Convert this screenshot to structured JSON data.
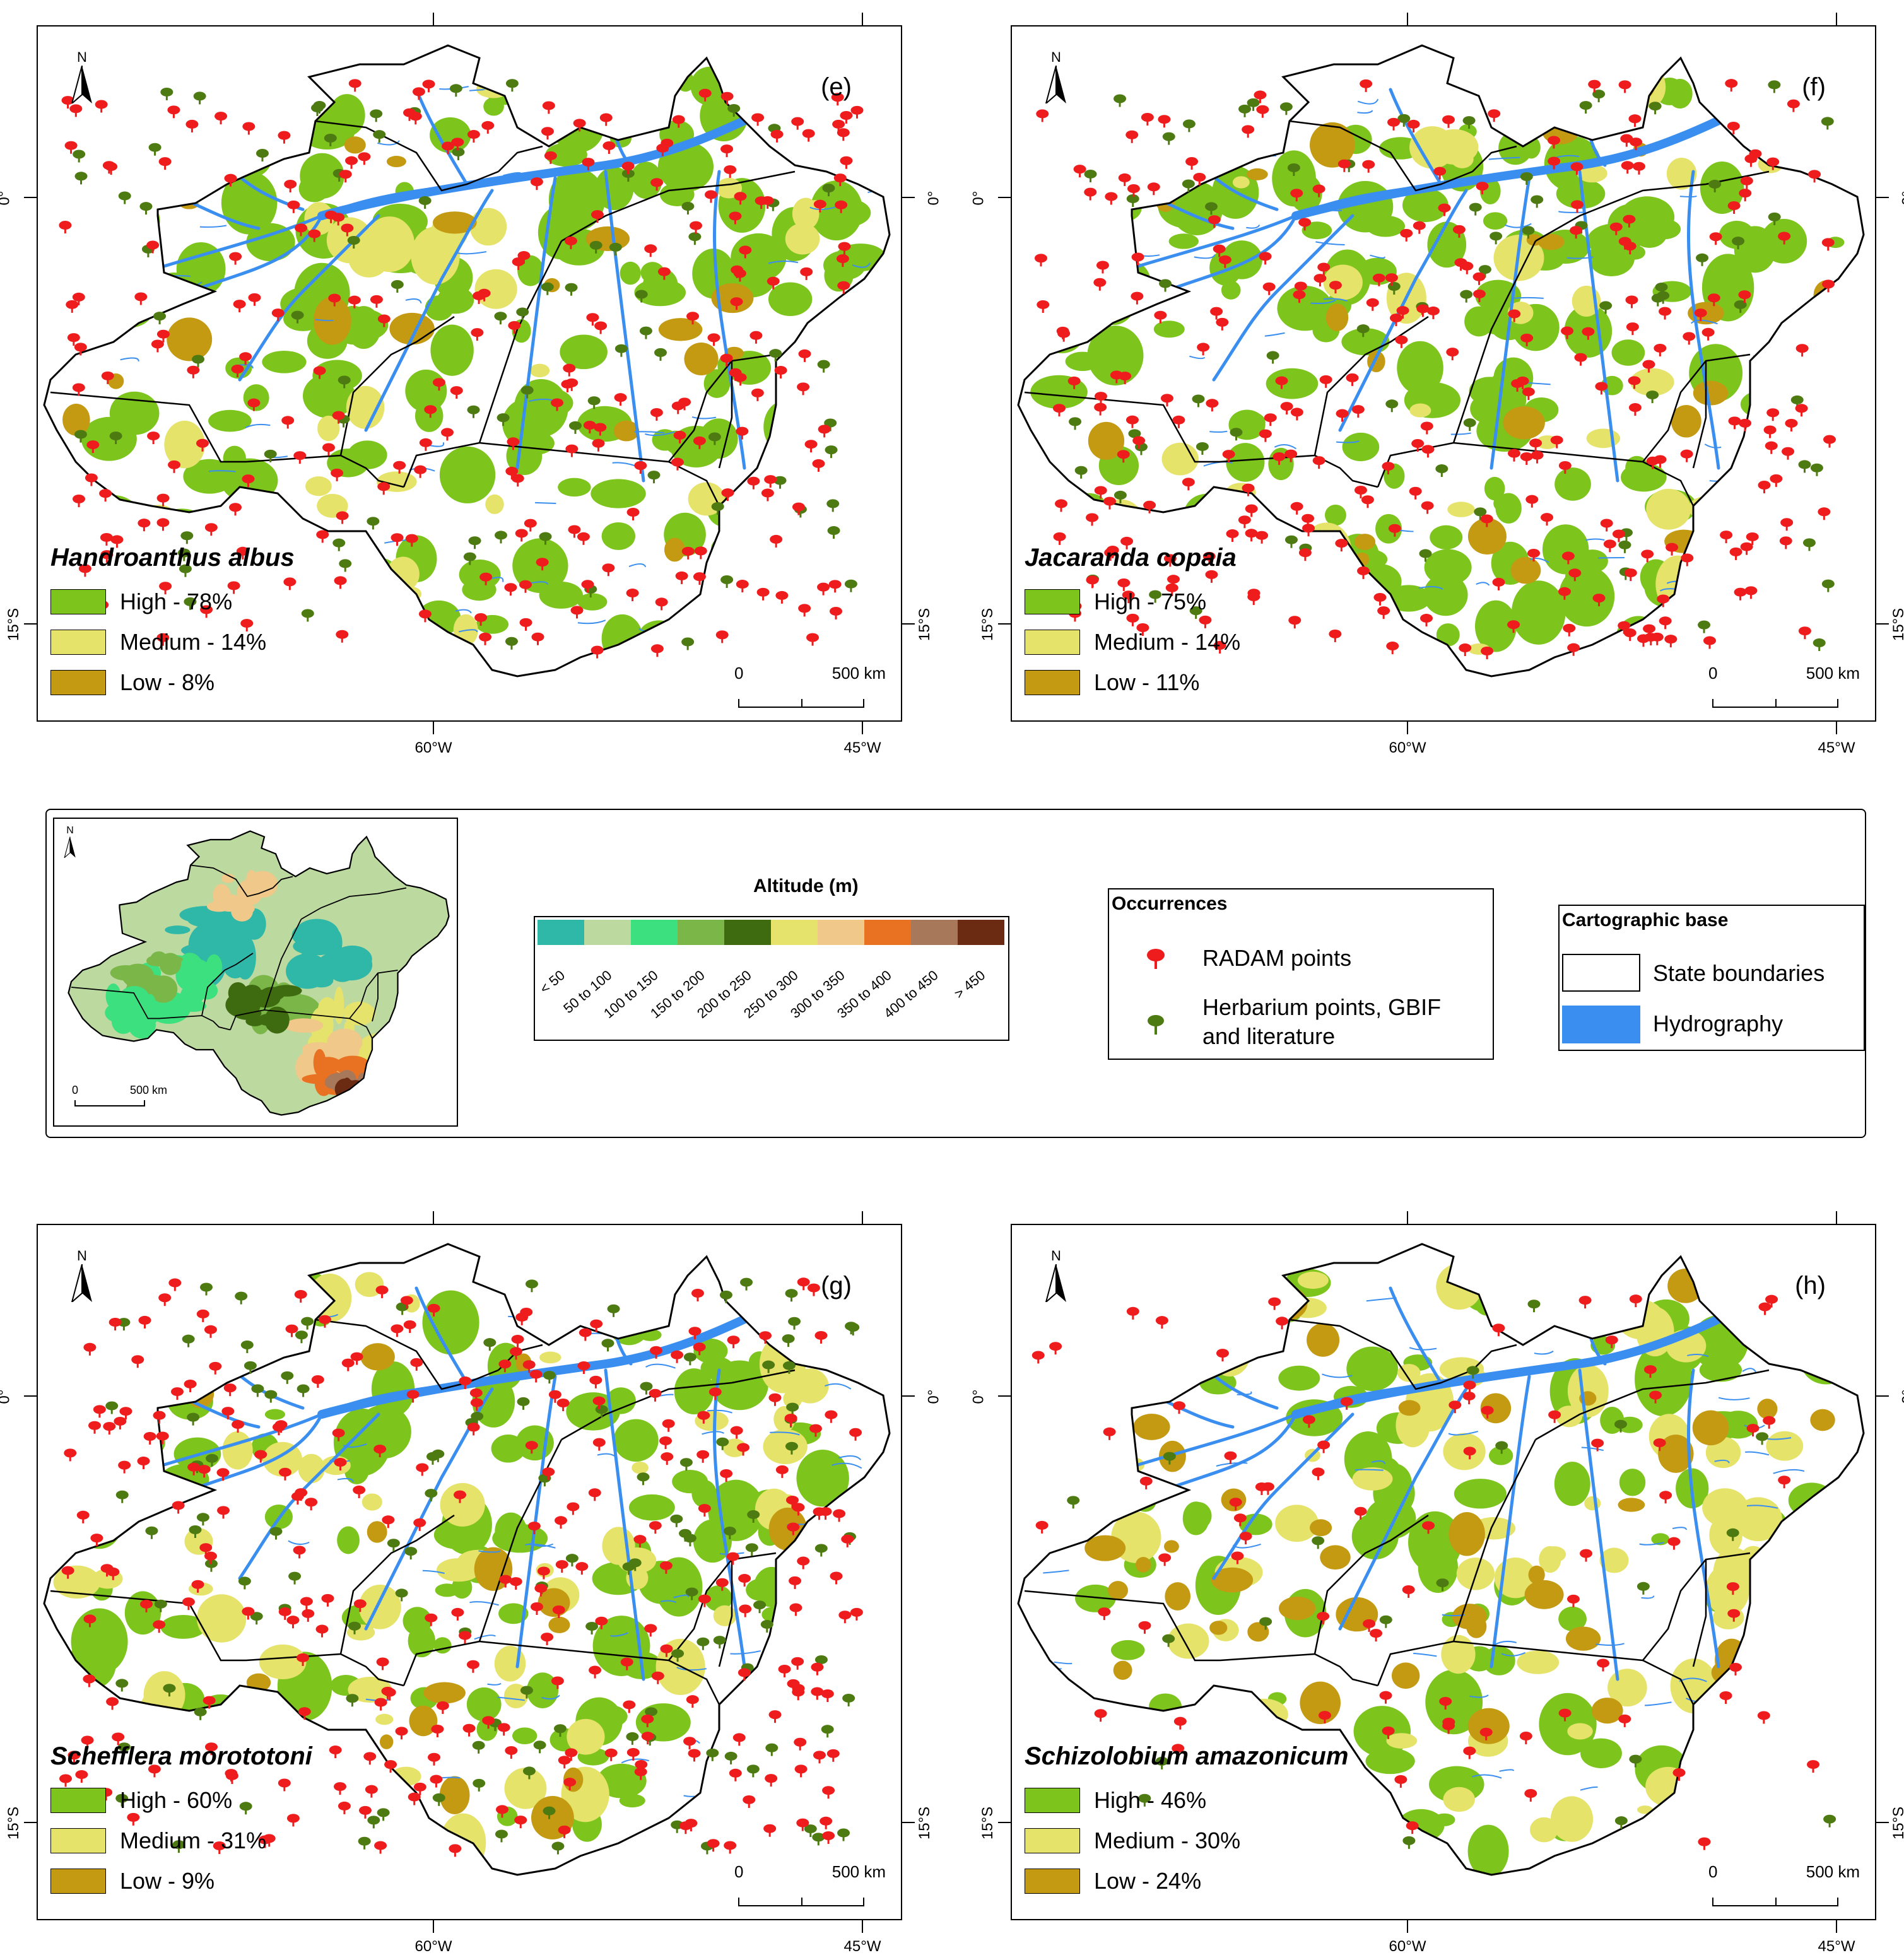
{
  "panels": [
    {
      "id": "e",
      "letter": "(e)",
      "species": "Handroanthus albus",
      "legend": [
        {
          "label": "High - 78%",
          "color": "#7dc41d"
        },
        {
          "label": "Medium - 14%",
          "color": "#e5e36a"
        },
        {
          "label": "Low - 8%",
          "color": "#c49a12"
        }
      ]
    },
    {
      "id": "f",
      "letter": "(f)",
      "species": "Jacaranda copaia",
      "legend": [
        {
          "label": "High - 75%",
          "color": "#7dc41d"
        },
        {
          "label": "Medium - 14%",
          "color": "#e5e36a"
        },
        {
          "label": "Low - 11%",
          "color": "#c49a12"
        }
      ]
    },
    {
      "id": "g",
      "letter": "(g)",
      "species": "Schefflera morototoni",
      "legend": [
        {
          "label": "High - 60%",
          "color": "#7dc41d"
        },
        {
          "label": "Medium - 31%",
          "color": "#e5e36a"
        },
        {
          "label": "Low - 9%",
          "color": "#c49a12"
        }
      ]
    },
    {
      "id": "h",
      "letter": "(h)",
      "species": "Schizolobium amazonicum",
      "legend": [
        {
          "label": "High - 46%",
          "color": "#7dc41d"
        },
        {
          "label": "Medium - 30%",
          "color": "#e5e36a"
        },
        {
          "label": "Low - 24%",
          "color": "#c49a12"
        }
      ]
    }
  ],
  "axes": {
    "lon": [
      "60°W",
      "45°W"
    ],
    "lat": [
      "0°",
      "15°S"
    ],
    "north": "N"
  },
  "scalebar": {
    "start": "0",
    "end": "500 km"
  },
  "altitude": {
    "title": "Altitude (m)",
    "classes": [
      {
        "label": "< 50",
        "color": "#2fb8a8"
      },
      {
        "label": "50 to 100",
        "color": "#bcd9a0"
      },
      {
        "label": "100 to 150",
        "color": "#3de07e"
      },
      {
        "label": "150 to 200",
        "color": "#7ab648"
      },
      {
        "label": "200 to 250",
        "color": "#3e6b10"
      },
      {
        "label": "250 to 300",
        "color": "#e6e36c"
      },
      {
        "label": "300 to 350",
        "color": "#efc88a"
      },
      {
        "label": "350 to 400",
        "color": "#e87222"
      },
      {
        "label": "400 to 450",
        "color": "#a8785a"
      },
      {
        "label": "> 450",
        "color": "#6b2a12"
      }
    ]
  },
  "inset": {
    "north": "N",
    "scale_start": "0",
    "scale_end": "500 km"
  },
  "occurrences": {
    "title": "Occurrences",
    "radam": "RADAM points",
    "herbarium_line1": "Herbarium points, GBIF",
    "herbarium_line2": "and literature",
    "radam_color": "#ee1c1c",
    "herbarium_color": "#4e7a12"
  },
  "cartographic": {
    "title": "Cartographic base",
    "state": "State boundaries",
    "hydro": "Hydrography",
    "hydro_color": "#3a8ef0"
  }
}
